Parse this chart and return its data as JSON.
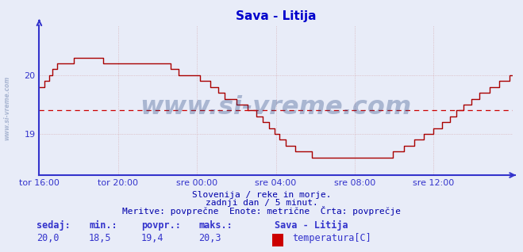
{
  "title": "Sava - Litija",
  "title_color": "#0000cc",
  "bg_color": "#e8ecf8",
  "plot_bg_color": "#e8ecf8",
  "line_color": "#aa0000",
  "axis_color": "#3333cc",
  "grid_color": "#cc8888",
  "dashed_line_color": "#cc0000",
  "dashed_line_value": 19.4,
  "x_tick_labels": [
    "tor 16:00",
    "tor 20:00",
    "sre 00:00",
    "sre 04:00",
    "sre 08:00",
    "sre 12:00"
  ],
  "x_tick_positions": [
    0,
    48,
    96,
    144,
    192,
    240
  ],
  "y_ticks": [
    19.0,
    20.0
  ],
  "ylim_min": 18.3,
  "ylim_max": 20.85,
  "total_points": 289,
  "text_line1": "Slovenija / reke in morje.",
  "text_line2": "zadnji dan / 5 minut.",
  "text_line3": "Meritve: povprečne  Enote: metrične  Črta: povprečje",
  "text_color": "#0000aa",
  "label_sedaj": "sedaj:",
  "label_min": "min.:",
  "label_povpr": "povpr.:",
  "label_maks": "maks.:",
  "val_sedaj": "20,0",
  "val_min": "18,5",
  "val_povpr": "19,4",
  "val_maks": "20,3",
  "legend_title": "Sava - Litija",
  "legend_label": "temperatura[C]",
  "legend_color": "#cc0000",
  "watermark": "www.si-vreme.com",
  "watermark_color": "#1a3a7a",
  "watermark_alpha": 0.3,
  "left_watermark": "www.si-vreme.com"
}
